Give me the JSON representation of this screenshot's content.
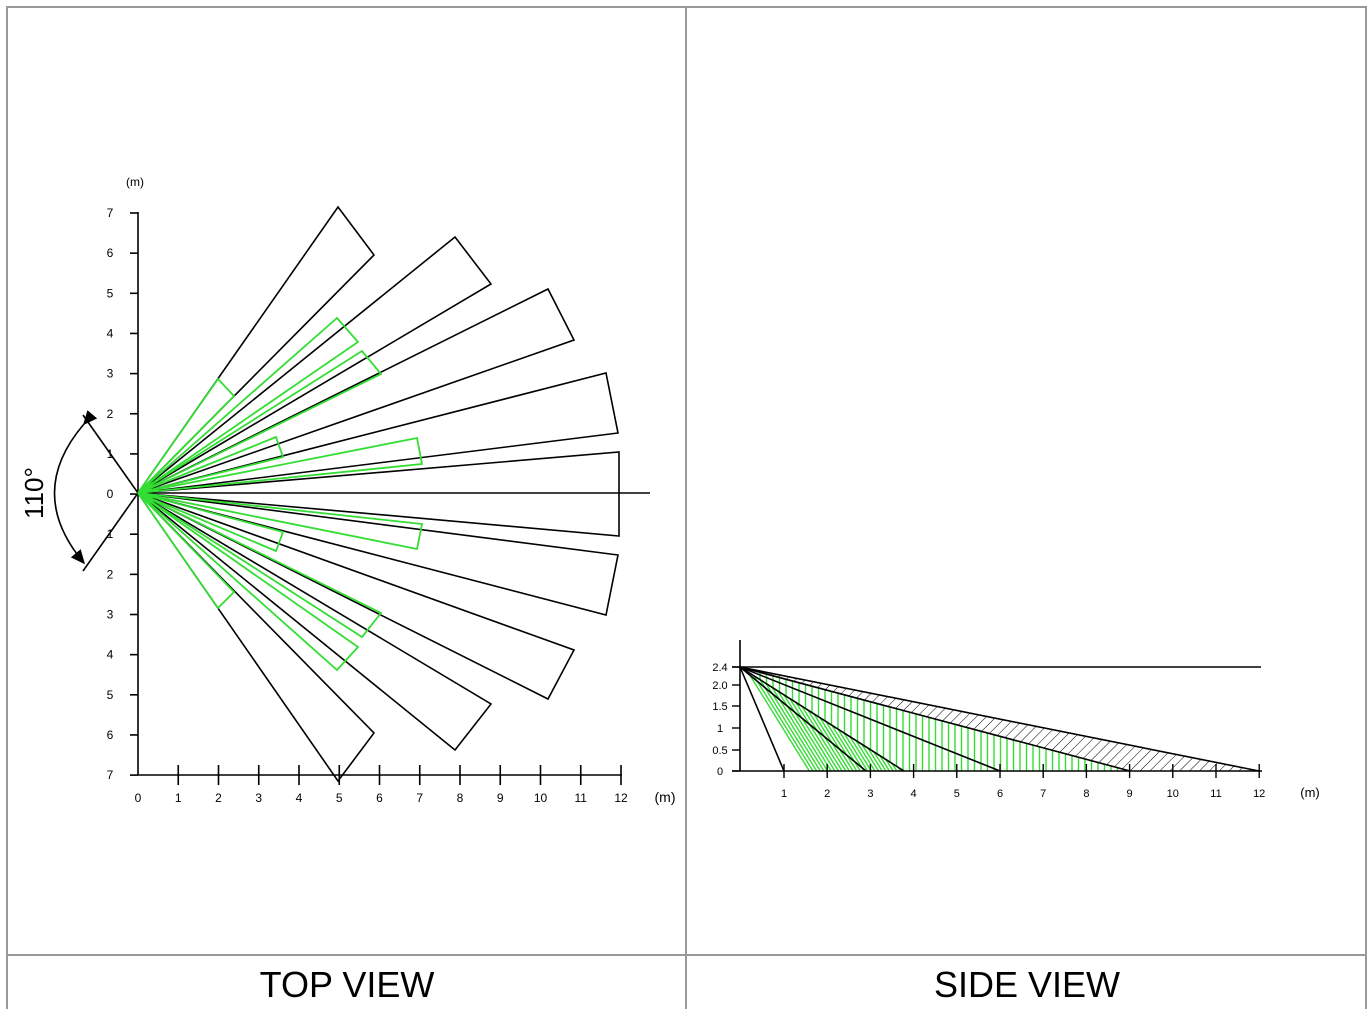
{
  "top_view": {
    "caption": "TOP VIEW",
    "unit_label": "(m)",
    "angle_label": "110°",
    "x_ticks": [
      "0",
      "1",
      "2",
      "3",
      "4",
      "5",
      "6",
      "7",
      "8",
      "9",
      "10",
      "11",
      "12"
    ],
    "y_ticks": [
      "7",
      "6",
      "5",
      "4",
      "3",
      "2",
      "1",
      "0",
      "1",
      "2",
      "3",
      "4",
      "5",
      "6",
      "7"
    ]
  },
  "side_view": {
    "caption": "SIDE VIEW",
    "unit_label": "(m)",
    "x_ticks": [
      "1",
      "2",
      "3",
      "4",
      "5",
      "6",
      "7",
      "8",
      "9",
      "10",
      "11",
      "12"
    ],
    "y_ticks": [
      "0",
      "0.5",
      "1",
      "1.5",
      "2.0",
      "2.4"
    ]
  },
  "colors": {
    "detection_zone": "#000000",
    "near_zone": "#33dd33",
    "frame": "#999999"
  }
}
